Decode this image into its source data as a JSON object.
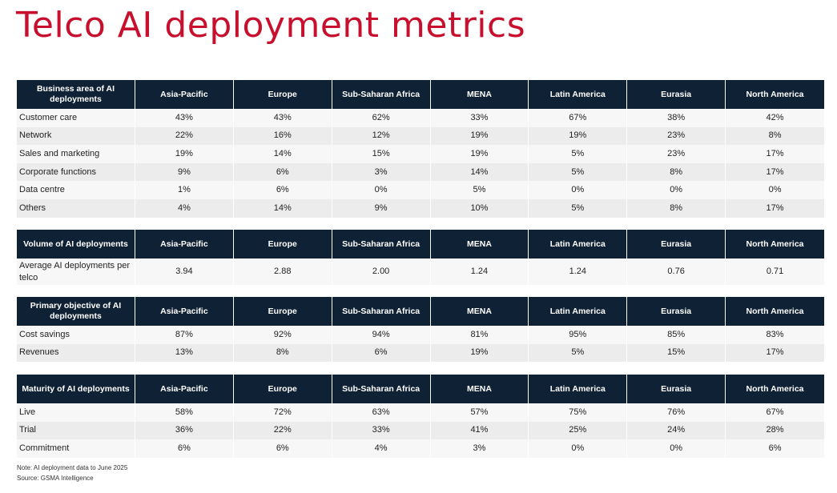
{
  "page": {
    "title": "Telco AI deployment metrics",
    "note": "Note: AI deployment data to June 2025",
    "source": "Source: GSMA Intelligence"
  },
  "colors": {
    "title": "#c8102e",
    "header_bg": "#0f2235",
    "row_light": "#f7f7f7",
    "row_dark": "#ececec"
  },
  "tables": [
    {
      "header": [
        "Business area of AI deployments",
        "Asia-Pacific",
        "Europe",
        "Sub-Saharan Africa",
        "MENA",
        "Latin America",
        "Eurasia",
        "North America"
      ],
      "rows": [
        [
          "Customer care",
          "43%",
          "43%",
          "62%",
          "33%",
          "67%",
          "38%",
          "42%"
        ],
        [
          "Network",
          "22%",
          "16%",
          "12%",
          "19%",
          "19%",
          "23%",
          "8%"
        ],
        [
          "Sales and marketing",
          "19%",
          "14%",
          "15%",
          "19%",
          "5%",
          "23%",
          "17%"
        ],
        [
          "Corporate functions",
          "9%",
          "6%",
          "3%",
          "14%",
          "5%",
          "8%",
          "17%"
        ],
        [
          "Data centre",
          "1%",
          "6%",
          "0%",
          "5%",
          "0%",
          "0%",
          "0%"
        ],
        [
          "Others",
          "4%",
          "14%",
          "9%",
          "10%",
          "5%",
          "8%",
          "17%"
        ]
      ]
    },
    {
      "header": [
        "Volume of AI deployments",
        "Asia-Pacific",
        "Europe",
        "Sub-Saharan Africa",
        "MENA",
        "Latin America",
        "Eurasia",
        "North America"
      ],
      "rows": [
        [
          "Average AI deployments per telco",
          "3.94",
          "2.88",
          "2.00",
          "1.24",
          "1.24",
          "0.76",
          "0.71"
        ]
      ]
    },
    {
      "header": [
        "Primary objective of AI deployments",
        "Asia-Pacific",
        "Europe",
        "Sub-Saharan Africa",
        "MENA",
        "Latin America",
        "Eurasia",
        "North America"
      ],
      "rows": [
        [
          "Cost savings",
          "87%",
          "92%",
          "94%",
          "81%",
          "95%",
          "85%",
          "83%"
        ],
        [
          "Revenues",
          "13%",
          "8%",
          "6%",
          "19%",
          "5%",
          "15%",
          "17%"
        ]
      ]
    },
    {
      "header": [
        "Maturity of AI deployments",
        "Asia-Pacific",
        "Europe",
        "Sub-Saharan Africa",
        "MENA",
        "Latin America",
        "Eurasia",
        "North America"
      ],
      "rows": [
        [
          "Live",
          "58%",
          "72%",
          "63%",
          "57%",
          "75%",
          "76%",
          "67%"
        ],
        [
          "Trial",
          "36%",
          "22%",
          "33%",
          "41%",
          "25%",
          "24%",
          "28%"
        ],
        [
          "Commitment",
          "6%",
          "6%",
          "4%",
          "3%",
          "0%",
          "0%",
          "6%"
        ]
      ]
    }
  ]
}
